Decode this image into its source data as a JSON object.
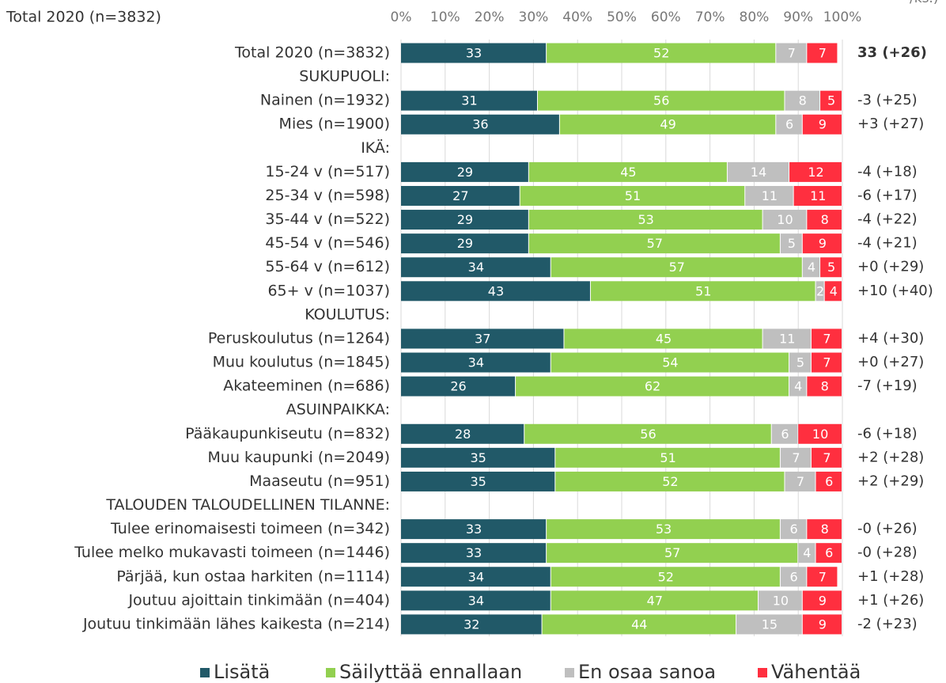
{
  "chart_data": {
    "type": "bar",
    "orientation": "horizontal",
    "stacked": true,
    "subtitle": "Total 2020 (n=3832)",
    "annotation": "/ks.)",
    "categories": [
      "Total 2020 (n=3832)",
      "SUKUPUOLI:",
      "Nainen (n=1932)",
      "Mies (n=1900)",
      "IKÄ:",
      "15-24 v (n=517)",
      "25-34 v (n=598)",
      "35-44 v (n=522)",
      "45-54 v (n=546)",
      "55-64 v (n=612)",
      "65+ v (n=1037)",
      "KOULUTUS:",
      "Peruskoulutus (n=1264)",
      "Muu koulutus (n=1845)",
      "Akateeminen (n=686)",
      "ASUINPAIKKA:",
      "Pääkaupunkiseutu (n=832)",
      "Muu kaupunki (n=2049)",
      "Maaseutu (n=951)",
      "TALOUDEN TALOUDELLINEN TILANNE:",
      "Tulee erinomaisesti toimeen (n=342)",
      "Tulee melko mukavasti toimeen (n=1446)",
      "Pärjää, kun ostaa harkiten (n=1114)",
      "Joutuu ajoittain tinkimään (n=404)",
      "Joutuu tinkimään lähes kaikesta (n=214)"
    ],
    "series": [
      {
        "name": "Lisätä",
        "color": "#215968",
        "values": [
          33,
          null,
          31,
          36,
          null,
          29,
          27,
          29,
          29,
          34,
          43,
          null,
          37,
          34,
          26,
          null,
          28,
          35,
          35,
          null,
          33,
          33,
          34,
          34,
          32
        ]
      },
      {
        "name": "Säilyttää ennallaan",
        "color": "#92d050",
        "values": [
          52,
          null,
          56,
          49,
          null,
          45,
          51,
          53,
          57,
          57,
          51,
          null,
          45,
          54,
          62,
          null,
          56,
          51,
          52,
          null,
          53,
          57,
          52,
          47,
          44
        ]
      },
      {
        "name": "En osaa sanoa",
        "color": "#bfbfbf",
        "values": [
          7,
          null,
          8,
          6,
          null,
          14,
          11,
          10,
          5,
          4,
          2,
          null,
          11,
          5,
          4,
          null,
          6,
          7,
          7,
          null,
          6,
          4,
          6,
          10,
          15
        ]
      },
      {
        "name": "Vähentää",
        "color": "#ff2f3f",
        "values": [
          7,
          null,
          5,
          9,
          null,
          12,
          11,
          8,
          9,
          5,
          4,
          null,
          7,
          7,
          8,
          null,
          10,
          7,
          6,
          null,
          8,
          6,
          7,
          9,
          9
        ]
      }
    ],
    "net_labels": [
      "33 (+26)",
      null,
      "-3 (+25)",
      "+3 (+27)",
      null,
      "-4 (+18)",
      "-6 (+17)",
      "-4 (+22)",
      "-4 (+21)",
      "+0 (+29)",
      "+10 (+40)",
      null,
      "+4 (+30)",
      "+0 (+27)",
      "-7 (+19)",
      null,
      "-6 (+18)",
      "+2 (+28)",
      "+2 (+29)",
      null,
      "-0 (+26)",
      "-0 (+28)",
      "+1 (+28)",
      "+1 (+26)",
      "-2 (+23)"
    ],
    "xlim": [
      0,
      100
    ],
    "xticks": [
      {
        "value": 0,
        "label": "0%"
      },
      {
        "value": 10,
        "label": "10%"
      },
      {
        "value": 20,
        "label": "20%"
      },
      {
        "value": 30,
        "label": "30%"
      },
      {
        "value": 40,
        "label": "40%"
      },
      {
        "value": 50,
        "label": "50%"
      },
      {
        "value": 60,
        "label": "60%"
      },
      {
        "value": 70,
        "label": "70%"
      },
      {
        "value": 80,
        "label": "80%"
      },
      {
        "value": 90,
        "label": "90%"
      },
      {
        "value": 100,
        "label": "100%"
      }
    ],
    "grid": true,
    "legend": "bottom"
  }
}
